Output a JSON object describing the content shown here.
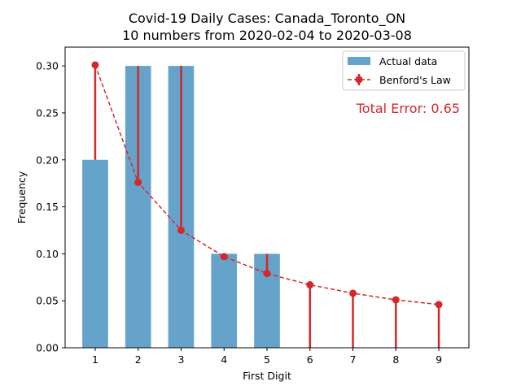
{
  "chart_data": {
    "type": "bar",
    "title": "Covid-19 Daily Cases: Canada_Toronto_ON",
    "subtitle": "10 numbers from 2020-02-04 to 2020-03-08",
    "xlabel": "First Digit",
    "ylabel": "Frequency",
    "categories": [
      "1",
      "2",
      "3",
      "4",
      "5",
      "6",
      "7",
      "8",
      "9"
    ],
    "x": [
      1,
      2,
      3,
      4,
      5,
      6,
      7,
      8,
      9
    ],
    "ylim": [
      0,
      0.32
    ],
    "yticks": [
      "0.00",
      "0.05",
      "0.10",
      "0.15",
      "0.20",
      "0.25",
      "0.30"
    ],
    "series": [
      {
        "name": "Actual data",
        "type": "bar",
        "color": "#66a3cb",
        "values": [
          0.2,
          0.3,
          0.3,
          0.1,
          0.1,
          0.0,
          0.0,
          0.0,
          0.0
        ]
      },
      {
        "name": "Benford's Law",
        "type": "line",
        "style": "dashed",
        "marker": "circle",
        "color": "#d62728",
        "values": [
          0.301,
          0.176,
          0.125,
          0.097,
          0.079,
          0.067,
          0.058,
          0.051,
          0.046
        ]
      }
    ],
    "error_bars": "vertical lines from Benford's Law value to Actual data value",
    "annotation": "Total Error: 0.65",
    "legend_position": "top-right",
    "grid": false
  }
}
